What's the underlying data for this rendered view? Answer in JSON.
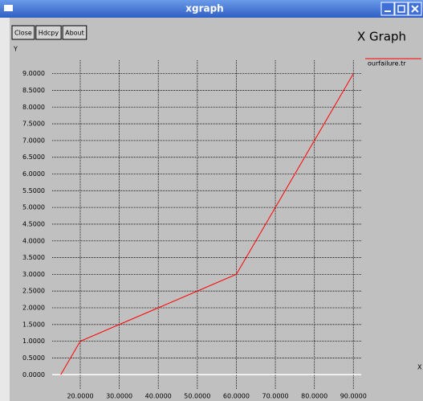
{
  "window": {
    "title": "xgraph",
    "buttons": [
      "Close",
      "Hdcpy",
      "About"
    ]
  },
  "chart_data": {
    "type": "line",
    "title": "X Graph",
    "y_label": "Y",
    "x_label": "X",
    "series": [
      {
        "name": "ourfailure.tr",
        "color": "#ff0000",
        "x": [
          15,
          20,
          40,
          60,
          90
        ],
        "values": [
          0,
          1,
          2,
          3,
          9
        ]
      }
    ],
    "xlim": [
      12.8,
      92
    ],
    "ylim": [
      -0.45,
      9.4
    ],
    "xticks": [
      {
        "value": 20,
        "label": "20.0000"
      },
      {
        "value": 30,
        "label": "30.0000"
      },
      {
        "value": 40,
        "label": "40.0000"
      },
      {
        "value": 50,
        "label": "50.0000"
      },
      {
        "value": 60,
        "label": "60.0000"
      },
      {
        "value": 70,
        "label": "70.0000"
      },
      {
        "value": 80,
        "label": "80.0000"
      },
      {
        "value": 90,
        "label": "90.0000"
      }
    ],
    "yticks": [
      {
        "value": 0,
        "label": "0.0000"
      },
      {
        "value": 0.5,
        "label": "0.5000"
      },
      {
        "value": 1,
        "label": "1.0000"
      },
      {
        "value": 1.5,
        "label": "1.5000"
      },
      {
        "value": 2,
        "label": "2.0000"
      },
      {
        "value": 2.5,
        "label": "2.5000"
      },
      {
        "value": 3,
        "label": "3.0000"
      },
      {
        "value": 3.5,
        "label": "3.5000"
      },
      {
        "value": 4,
        "label": "4.0000"
      },
      {
        "value": 4.5,
        "label": "4.5000"
      },
      {
        "value": 5,
        "label": "5.0000"
      },
      {
        "value": 5.5,
        "label": "5.5000"
      },
      {
        "value": 6,
        "label": "6.0000"
      },
      {
        "value": 6.5,
        "label": "6.5000"
      },
      {
        "value": 7,
        "label": "7.0000"
      },
      {
        "value": 7.5,
        "label": "7.5000"
      },
      {
        "value": 8,
        "label": "8.0000"
      },
      {
        "value": 8.5,
        "label": "8.5000"
      },
      {
        "value": 9,
        "label": "9.0000"
      }
    ],
    "grid": true
  }
}
